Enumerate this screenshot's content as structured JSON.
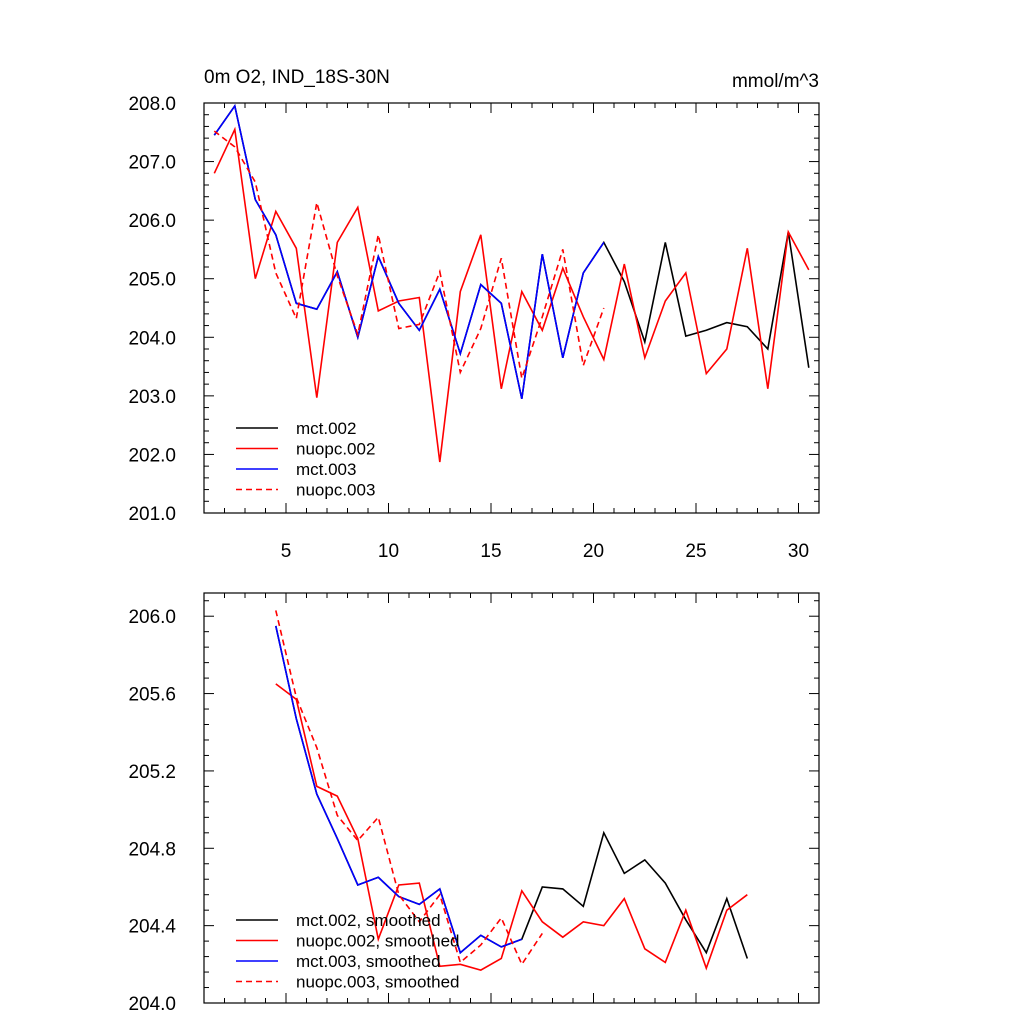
{
  "chart_data": [
    {
      "type": "line",
      "title": "0m O2, IND_18S-30N",
      "units": "mmol/m^3",
      "xlim": [
        1,
        31
      ],
      "ylim": [
        201.0,
        208.0
      ],
      "xticks": [
        5,
        10,
        15,
        20,
        25,
        30
      ],
      "xtick_labels": [
        "5",
        "10",
        "15",
        "20",
        "25",
        "30"
      ],
      "yticks": [
        201,
        202,
        203,
        204,
        205,
        206,
        207,
        208
      ],
      "ytick_labels": [
        "201.0",
        "202.0",
        "203.0",
        "204.0",
        "205.0",
        "206.0",
        "207.0",
        "208.0"
      ],
      "legend": [
        "mct.002",
        "nuopc.002",
        "mct.003",
        "nuopc.003"
      ],
      "legend_position": "bottom-left",
      "series": [
        {
          "name": "mct.002",
          "color": "#000000",
          "dash": false,
          "x": [
            1.5,
            2.5,
            3.5,
            4.5,
            5.5,
            6.5,
            7.5,
            8.5,
            9.5,
            10.5,
            11.5,
            12.5,
            13.5,
            14.5,
            15.5,
            16.5,
            17.5,
            18.5,
            19.5,
            20.5,
            21.5,
            22.5,
            23.5,
            24.5,
            25.5,
            26.5,
            27.5,
            28.5,
            29.5,
            30.5
          ],
          "values": [
            207.45,
            207.95,
            206.35,
            205.75,
            204.58,
            204.48,
            205.12,
            204.0,
            205.38,
            204.58,
            204.12,
            204.82,
            203.72,
            204.9,
            204.58,
            202.95,
            205.42,
            203.65,
            205.1,
            205.62,
            204.95,
            203.92,
            205.62,
            204.02,
            204.12,
            204.25,
            204.18,
            203.8,
            205.8,
            203.48
          ]
        },
        {
          "name": "nuopc.002",
          "color": "#ff0000",
          "dash": false,
          "x": [
            1.5,
            2.5,
            3.5,
            4.5,
            5.5,
            6.5,
            7.5,
            8.5,
            9.5,
            10.5,
            11.5,
            12.5,
            13.5,
            14.5,
            15.5,
            16.5,
            17.5,
            18.5,
            19.5,
            20.5,
            21.5,
            22.5,
            23.5,
            24.5,
            25.5,
            26.5,
            27.5,
            28.5,
            29.5,
            30.5
          ],
          "values": [
            206.8,
            207.55,
            205.0,
            206.15,
            205.52,
            202.97,
            205.62,
            206.22,
            204.45,
            204.62,
            204.68,
            201.87,
            204.78,
            205.75,
            203.12,
            204.78,
            204.12,
            205.18,
            204.35,
            203.62,
            205.25,
            203.65,
            204.62,
            205.1,
            203.38,
            203.8,
            205.52,
            203.12,
            205.8,
            205.15
          ]
        },
        {
          "name": "mct.003",
          "color": "#0000ff",
          "dash": false,
          "x": [
            1.5,
            2.5,
            3.5,
            4.5,
            5.5,
            6.5,
            7.5,
            8.5,
            9.5,
            10.5,
            11.5,
            12.5,
            13.5,
            14.5,
            15.5,
            16.5,
            17.5,
            18.5,
            19.5,
            20.5
          ],
          "values": [
            207.45,
            207.95,
            206.35,
            205.75,
            204.58,
            204.48,
            205.12,
            204.0,
            205.38,
            204.58,
            204.12,
            204.82,
            203.72,
            204.9,
            204.58,
            202.95,
            205.42,
            203.65,
            205.1,
            205.62
          ]
        },
        {
          "name": "nuopc.003",
          "color": "#ff0000",
          "dash": true,
          "x": [
            1.5,
            2.5,
            3.5,
            4.5,
            5.5,
            6.5,
            7.5,
            8.5,
            9.5,
            10.5,
            11.5,
            12.5,
            13.5,
            14.5,
            15.5,
            16.5,
            17.5,
            18.5,
            19.5,
            20.5
          ],
          "values": [
            207.52,
            207.25,
            206.65,
            205.1,
            204.32,
            206.3,
            205.05,
            204.05,
            205.75,
            204.15,
            204.22,
            205.12,
            203.4,
            204.15,
            205.35,
            203.3,
            204.35,
            205.5,
            203.52,
            204.5
          ]
        }
      ]
    },
    {
      "type": "line",
      "title": "",
      "xlim": [
        1,
        31
      ],
      "ylim": [
        204.0,
        206.12
      ],
      "xticks": [
        5,
        10,
        15,
        20,
        25,
        30
      ],
      "xtick_labels": [],
      "yticks": [
        204.0,
        204.4,
        204.8,
        205.2,
        205.6,
        206.0
      ],
      "ytick_labels": [
        "204.0",
        "204.4",
        "204.8",
        "205.2",
        "205.6",
        "206.0"
      ],
      "legend": [
        "mct.002, smoothed",
        "nuopc.002, smoothed",
        "mct.003, smoothed",
        "nuopc.003, smoothed"
      ],
      "legend_position": "bottom-left",
      "series": [
        {
          "name": "mct.002, smoothed",
          "color": "#000000",
          "dash": false,
          "x": [
            4.5,
            5.5,
            6.5,
            7.5,
            8.5,
            9.5,
            10.5,
            11.5,
            12.5,
            13.5,
            14.5,
            15.5,
            16.5,
            17.5,
            18.5,
            19.5,
            20.5,
            21.5,
            22.5,
            23.5,
            24.5,
            25.5,
            26.5,
            27.5
          ],
          "values": [
            205.95,
            205.47,
            205.08,
            204.85,
            204.61,
            204.65,
            204.55,
            204.51,
            204.59,
            204.26,
            204.35,
            204.29,
            204.33,
            204.6,
            204.59,
            204.5,
            204.88,
            204.67,
            204.74,
            204.62,
            204.43,
            204.26,
            204.54,
            204.23
          ]
        },
        {
          "name": "nuopc.002, smoothed",
          "color": "#ff0000",
          "dash": false,
          "x": [
            4.5,
            5.5,
            6.5,
            7.5,
            8.5,
            9.5,
            10.5,
            11.5,
            12.5,
            13.5,
            14.5,
            15.5,
            16.5,
            17.5,
            18.5,
            19.5,
            20.5,
            21.5,
            22.5,
            23.5,
            24.5,
            25.5,
            26.5,
            27.5
          ],
          "values": [
            205.65,
            205.57,
            205.12,
            205.07,
            204.85,
            204.33,
            204.61,
            204.62,
            204.19,
            204.2,
            204.17,
            204.23,
            204.58,
            204.42,
            204.34,
            204.42,
            204.4,
            204.54,
            204.28,
            204.21,
            204.48,
            204.18,
            204.48,
            204.56
          ]
        },
        {
          "name": "mct.003, smoothed",
          "color": "#0000ff",
          "dash": false,
          "x": [
            4.5,
            5.5,
            6.5,
            7.5,
            8.5,
            9.5,
            10.5,
            11.5,
            12.5,
            13.5,
            14.5,
            15.5,
            16.5
          ],
          "values": [
            205.95,
            205.47,
            205.08,
            204.85,
            204.61,
            204.65,
            204.55,
            204.51,
            204.59,
            204.26,
            204.35,
            204.29,
            204.33
          ]
        },
        {
          "name": "nuopc.003, smoothed",
          "color": "#ff0000",
          "dash": true,
          "x": [
            4.5,
            5.5,
            6.5,
            7.5,
            8.5,
            9.5,
            10.5,
            11.5,
            12.5,
            13.5,
            14.5,
            15.5,
            16.5,
            17.5
          ],
          "values": [
            206.03,
            205.58,
            205.32,
            204.97,
            204.84,
            204.96,
            204.56,
            204.42,
            204.56,
            204.21,
            204.3,
            204.44,
            204.2,
            204.36
          ]
        }
      ]
    }
  ]
}
